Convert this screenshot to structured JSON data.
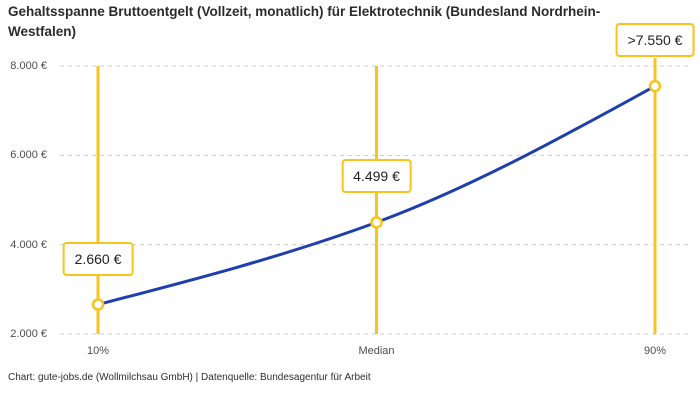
{
  "header": {
    "title": "Gehaltsspanne Bruttoentgelt (Vollzeit, monatlich) für Elektrotechnik (Bundesland Nordrhein-Westfalen)"
  },
  "footer": {
    "credit": "Chart: gute-jobs.de (Wollmilchsau GmbH) | Datenquelle: Bundesagentur für Arbeit"
  },
  "colors": {
    "accent_yellow": "#F8C31C",
    "line_blue": "#1F3FAD",
    "gridline": "#CCCCCC",
    "title_text": "#2B2B2B",
    "axis_text": "#4D4D4D",
    "label_text": "#1F1F1F",
    "background": "#FFFFFF"
  },
  "chart_data": {
    "type": "line",
    "title": "Gehaltsspanne Bruttoentgelt (Vollzeit, monatlich) für Elektrotechnik (Bundesland Nordrhein-Westfalen)",
    "categories": [
      "10%",
      "Median",
      "90%"
    ],
    "values": [
      2660,
      4499,
      7550
    ],
    "point_labels": [
      "2.660 €",
      "4.499 €",
      ">7.550 €"
    ],
    "y_ticks": [
      2000,
      4000,
      6000,
      8000
    ],
    "y_tick_labels": [
      "2.000 €",
      "4.000 €",
      "6.000 €",
      "8.000 €"
    ],
    "ylim": [
      2000,
      8000
    ],
    "xlabel": "",
    "ylabel": "",
    "grid": "horizontal-dashed",
    "legend": "none",
    "curve": "monotone",
    "marker_style": "vertical-accent-lines-with-open-circle-points-and-framed-value-labels"
  }
}
